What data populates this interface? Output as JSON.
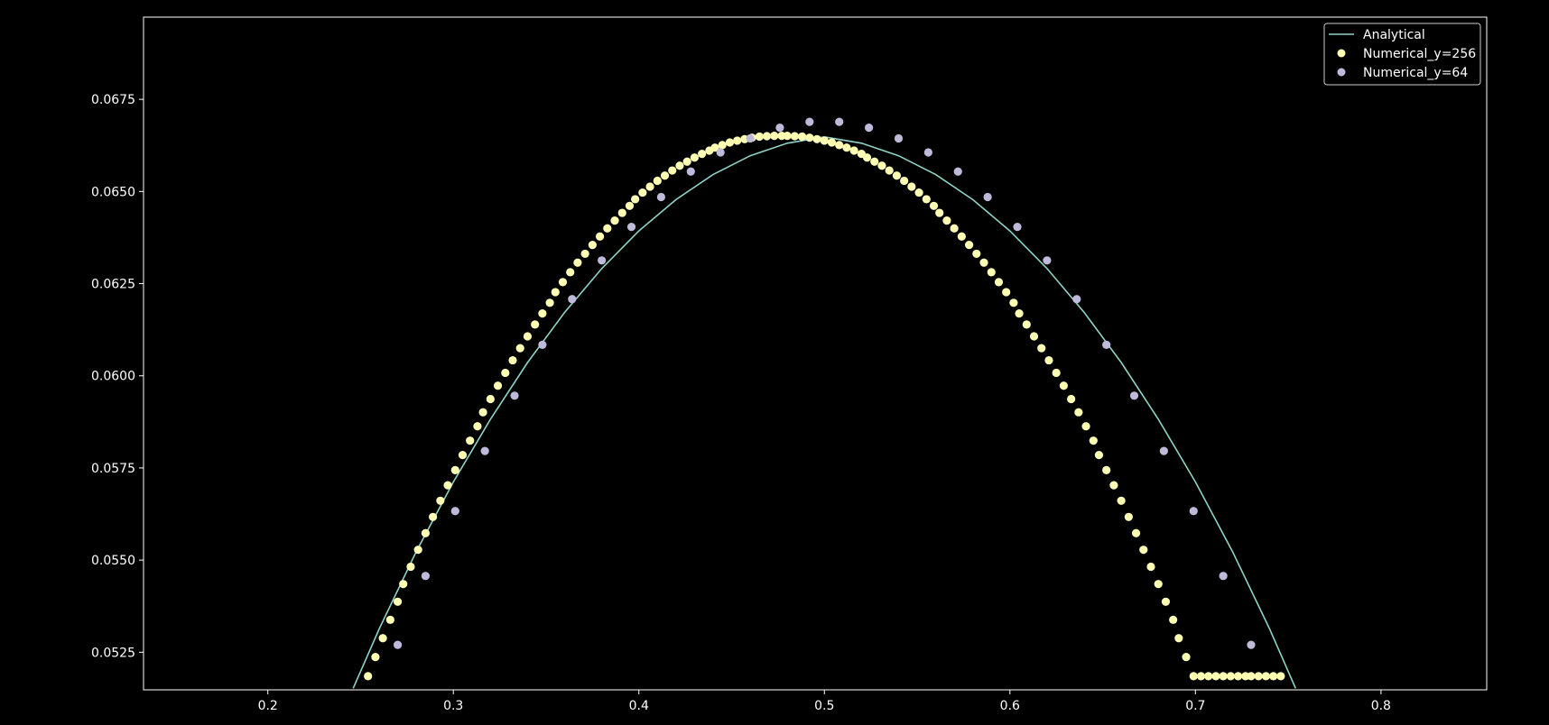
{
  "chart_data": {
    "type": "line",
    "title": "",
    "xlabel": "",
    "ylabel": "",
    "xlim": [
      0.133,
      0.857
    ],
    "ylim": [
      0.05148,
      0.06973
    ],
    "x_ticks": [
      0.2,
      0.3,
      0.4,
      0.5,
      0.6,
      0.7,
      0.8
    ],
    "x_tick_labels": [
      "0.2",
      "0.3",
      "0.4",
      "0.5",
      "0.6",
      "0.7",
      "0.8"
    ],
    "y_ticks": [
      0.0525,
      0.055,
      0.0575,
      0.06,
      0.0625,
      0.065,
      0.0675
    ],
    "y_tick_labels": [
      "0.0525",
      "0.0550",
      "0.0575",
      "0.0600",
      "0.0625",
      "0.0650",
      "0.0675"
    ],
    "grid": false,
    "legend_position": "top-right",
    "series": [
      {
        "name": "Analytical",
        "kind": "line",
        "color": "#8dd3c7",
        "x": [
          0.246,
          0.26,
          0.28,
          0.3,
          0.32,
          0.34,
          0.36,
          0.38,
          0.4,
          0.42,
          0.44,
          0.46,
          0.48,
          0.5,
          0.52,
          0.54,
          0.56,
          0.58,
          0.6,
          0.62,
          0.64,
          0.66,
          0.68,
          0.7,
          0.72,
          0.74,
          0.754
        ],
        "y": [
          0.05152,
          0.05313,
          0.05523,
          0.05712,
          0.05882,
          0.06036,
          0.06172,
          0.06291,
          0.06393,
          0.06478,
          0.06546,
          0.06597,
          0.06631,
          0.06648,
          0.06631,
          0.06597,
          0.06546,
          0.06478,
          0.06393,
          0.06291,
          0.06172,
          0.06036,
          0.05882,
          0.05712,
          0.05523,
          0.05313,
          0.05152
        ]
      },
      {
        "name": "Numerical_y=256",
        "kind": "scatter",
        "color": "#ffffb3",
        "x": [
          0.254,
          0.258,
          0.262,
          0.266,
          0.27,
          0.273,
          0.277,
          0.281,
          0.285,
          0.289,
          0.293,
          0.297,
          0.301,
          0.305,
          0.309,
          0.313,
          0.316,
          0.32,
          0.324,
          0.328,
          0.332,
          0.336,
          0.34,
          0.344,
          0.348,
          0.352,
          0.355,
          0.359,
          0.363,
          0.367,
          0.371,
          0.375,
          0.379,
          0.383,
          0.387,
          0.391,
          0.395,
          0.398,
          0.402,
          0.406,
          0.41,
          0.414,
          0.418,
          0.422,
          0.426,
          0.43,
          0.434,
          0.438,
          0.441,
          0.445,
          0.449,
          0.453,
          0.457,
          0.461,
          0.465,
          0.469,
          0.473,
          0.477,
          0.48,
          0.484,
          0.488,
          0.492,
          0.496,
          0.5,
          0.504,
          0.508,
          0.512,
          0.516,
          0.52,
          0.523,
          0.527,
          0.531,
          0.535,
          0.539,
          0.543,
          0.547,
          0.551,
          0.555,
          0.559,
          0.562,
          0.566,
          0.57,
          0.574,
          0.578,
          0.582,
          0.586,
          0.59,
          0.594,
          0.598,
          0.602,
          0.605,
          0.609,
          0.613,
          0.617,
          0.621,
          0.625,
          0.629,
          0.633,
          0.637,
          0.641,
          0.645,
          0.648,
          0.652,
          0.656,
          0.66,
          0.664,
          0.668,
          0.672,
          0.676,
          0.68,
          0.684,
          0.688,
          0.691,
          0.695,
          0.699,
          0.703,
          0.707,
          0.711,
          0.715,
          0.719,
          0.723,
          0.727,
          0.73,
          0.734,
          0.738,
          0.742,
          0.746
        ],
        "y": [
          0.05185,
          0.05237,
          0.05288,
          0.05338,
          0.05387,
          0.05435,
          0.05482,
          0.05528,
          0.05573,
          0.05617,
          0.05661,
          0.05703,
          0.05744,
          0.05785,
          0.05824,
          0.05863,
          0.05901,
          0.05937,
          0.05973,
          0.06008,
          0.06042,
          0.06075,
          0.06107,
          0.06139,
          0.06169,
          0.06198,
          0.06227,
          0.06254,
          0.06281,
          0.06307,
          0.06331,
          0.06355,
          0.06378,
          0.064,
          0.06421,
          0.06442,
          0.06461,
          0.06479,
          0.06497,
          0.06513,
          0.06529,
          0.06543,
          0.06557,
          0.0657,
          0.06581,
          0.06592,
          0.06602,
          0.06611,
          0.06619,
          0.06626,
          0.06633,
          0.06638,
          0.06642,
          0.06646,
          0.06649,
          0.0665,
          0.06651,
          0.06651,
          0.06651,
          0.0665,
          0.06649,
          0.06646,
          0.06642,
          0.06638,
          0.06633,
          0.06626,
          0.06619,
          0.06611,
          0.06602,
          0.06592,
          0.06581,
          0.0657,
          0.06557,
          0.06543,
          0.06529,
          0.06513,
          0.06497,
          0.06479,
          0.06461,
          0.06442,
          0.06421,
          0.064,
          0.06378,
          0.06355,
          0.06331,
          0.06307,
          0.06281,
          0.06254,
          0.06227,
          0.06198,
          0.06169,
          0.06139,
          0.06107,
          0.06075,
          0.06042,
          0.06008,
          0.05973,
          0.05937,
          0.05901,
          0.05863,
          0.05824,
          0.05785,
          0.05744,
          0.05703,
          0.05661,
          0.05617,
          0.05573,
          0.05528,
          0.05482,
          0.05435,
          0.05387,
          0.05338,
          0.05288,
          0.05237,
          0.05185,
          0.05185,
          0.05185,
          0.05185,
          0.05185,
          0.05185,
          0.05185,
          0.05185,
          0.05185,
          0.05185,
          0.05185,
          0.05185,
          0.05185
        ]
      },
      {
        "name": "Numerical_y=64",
        "kind": "scatter",
        "color": "#bebada",
        "x": [
          0.27,
          0.285,
          0.301,
          0.317,
          0.333,
          0.348,
          0.364,
          0.38,
          0.396,
          0.412,
          0.428,
          0.444,
          0.46,
          0.476,
          0.492,
          0.508,
          0.524,
          0.54,
          0.556,
          0.572,
          0.588,
          0.604,
          0.62,
          0.636,
          0.652,
          0.667,
          0.683,
          0.699,
          0.715,
          0.73
        ],
        "y": [
          0.0527,
          0.05457,
          0.05633,
          0.05796,
          0.05946,
          0.06084,
          0.06208,
          0.06313,
          0.06404,
          0.06485,
          0.06554,
          0.06606,
          0.06644,
          0.06673,
          0.06689,
          0.06689,
          0.06673,
          0.06644,
          0.06606,
          0.06554,
          0.06485,
          0.06404,
          0.06313,
          0.06208,
          0.06084,
          0.05946,
          0.05796,
          0.05633,
          0.05457,
          0.0527
        ]
      }
    ]
  },
  "legend": {
    "items": [
      {
        "label": "Analytical"
      },
      {
        "label": "Numerical_y=256"
      },
      {
        "label": "Numerical_y=64"
      }
    ]
  }
}
